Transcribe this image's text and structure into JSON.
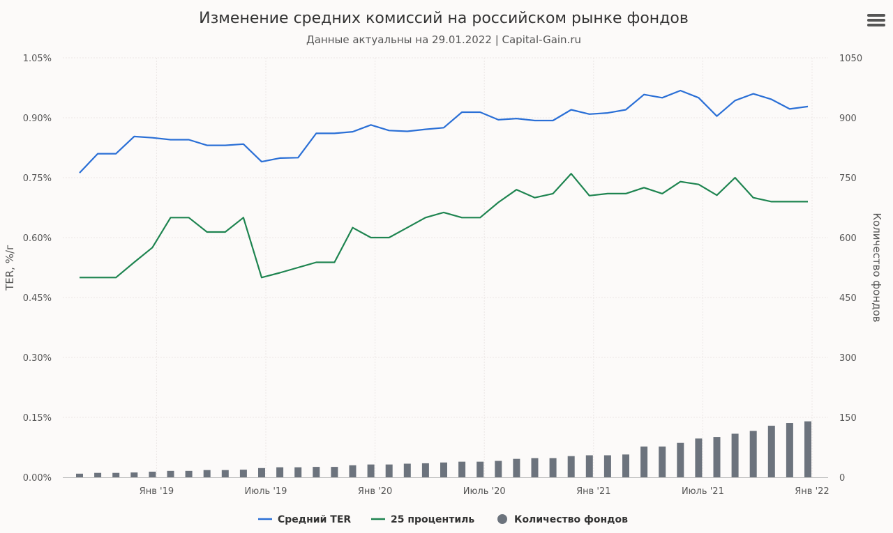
{
  "chart_data": {
    "type": "line",
    "title": "Изменение средних комиссий на российском рынке фондов",
    "subtitle": "Данные актуальны на 29.01.2022 | Capital-Gain.ru",
    "y_left": {
      "label": "TER, %/г",
      "range": [
        0,
        1.05
      ],
      "ticks": [
        0,
        0.15,
        0.3,
        0.45,
        0.6,
        0.75,
        0.9,
        1.05
      ],
      "tick_labels": [
        "0.00%",
        "0.15%",
        "0.30%",
        "0.45%",
        "0.60%",
        "0.75%",
        "0.90%",
        "1.05%"
      ]
    },
    "y_right": {
      "label": "Количество фондов",
      "range": [
        0,
        1050
      ],
      "ticks": [
        0,
        150,
        300,
        450,
        600,
        750,
        900,
        1050
      ],
      "tick_labels": [
        "0",
        "150",
        "300",
        "450",
        "600",
        "750",
        "900",
        "1050"
      ]
    },
    "x_ticks": [
      {
        "index": 4,
        "label": "Янв '19"
      },
      {
        "index": 10,
        "label": "Июль '19"
      },
      {
        "index": 16,
        "label": "Янв '20"
      },
      {
        "index": 22,
        "label": "Июль '20"
      },
      {
        "index": 28,
        "label": "Янв '21"
      },
      {
        "index": 34,
        "label": "Июль '21"
      },
      {
        "index": 40,
        "label": "Янв '22"
      }
    ],
    "x_count": 41,
    "grid": true,
    "legend_position": "bottom",
    "series": [
      {
        "name": "Средний TER",
        "type": "line",
        "axis": "left",
        "color": "#2a6fd6",
        "values": [
          0.762,
          0.81,
          0.81,
          0.853,
          0.85,
          0.845,
          0.845,
          0.831,
          0.831,
          0.834,
          0.79,
          0.799,
          0.8,
          0.861,
          0.861,
          0.865,
          0.882,
          0.868,
          0.866,
          0.871,
          0.875,
          0.914,
          0.914,
          0.895,
          0.898,
          0.893,
          0.893,
          0.92,
          0.909,
          0.912,
          0.92,
          0.958,
          0.95,
          0.968,
          0.95,
          0.904,
          0.943,
          0.96,
          0.946,
          0.922,
          0.928
        ]
      },
      {
        "name": "25 процентиль",
        "type": "line",
        "axis": "left",
        "color": "#1e8450",
        "values": [
          0.5,
          0.5,
          0.5,
          0.538,
          0.575,
          0.65,
          0.65,
          0.614,
          0.614,
          0.65,
          0.5,
          0.512,
          0.525,
          0.538,
          0.538,
          0.625,
          0.6,
          0.6,
          0.625,
          0.65,
          0.663,
          0.65,
          0.65,
          0.688,
          0.72,
          0.7,
          0.71,
          0.76,
          0.705,
          0.71,
          0.71,
          0.725,
          0.71,
          0.74,
          0.733,
          0.706,
          0.75,
          0.7,
          0.69,
          0.69,
          0.69
        ]
      },
      {
        "name": "Количество фондов",
        "type": "bar",
        "axis": "right",
        "color": "#6c737d",
        "values": [
          9,
          11,
          11,
          12,
          14,
          16,
          16,
          18,
          18,
          19,
          23,
          25,
          25,
          26,
          26,
          30,
          32,
          32,
          34,
          35,
          37,
          39,
          39,
          41,
          46,
          48,
          48,
          53,
          55,
          55,
          57,
          77,
          77,
          86,
          97,
          101,
          109,
          116,
          129,
          136,
          140
        ]
      }
    ]
  },
  "ui": {
    "menu_icon": "hamburger-menu-icon"
  }
}
